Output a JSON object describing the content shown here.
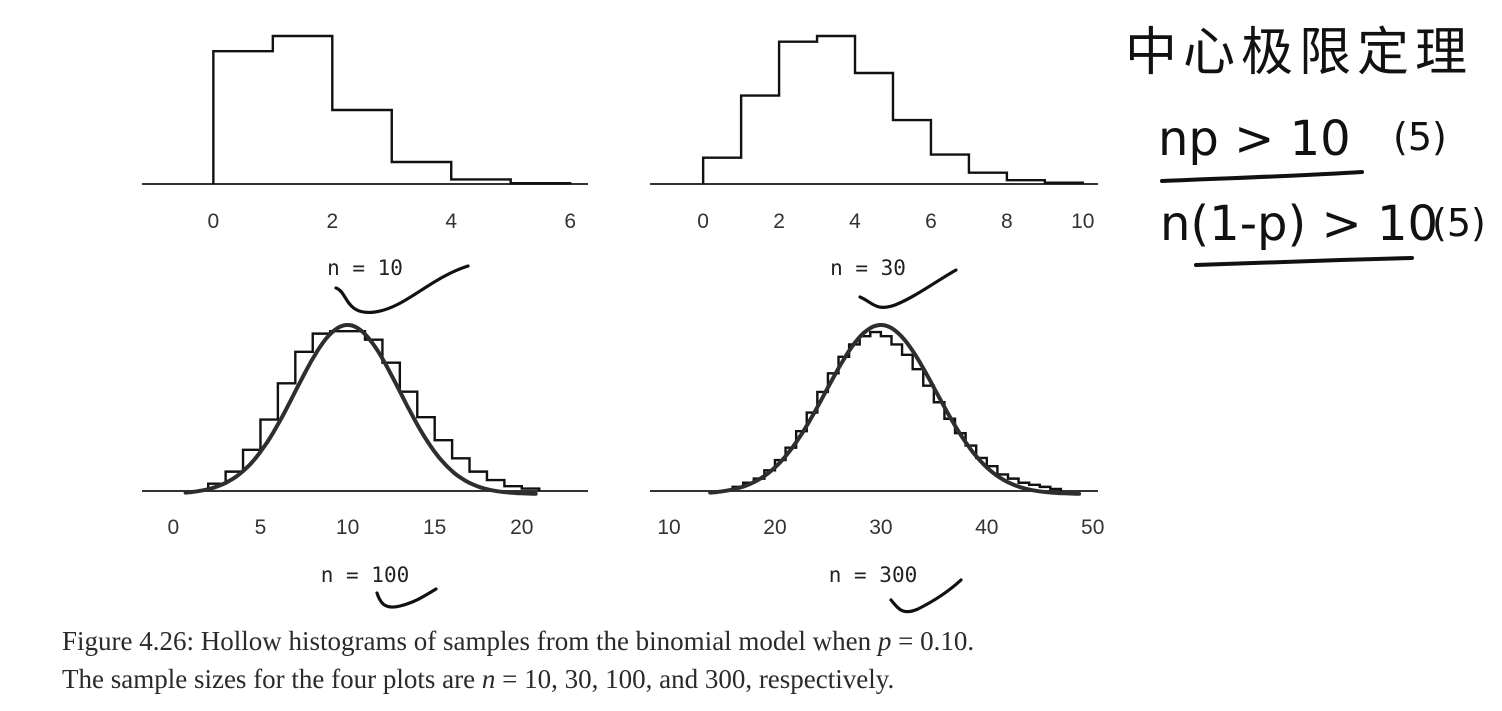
{
  "chart_data": [
    {
      "type": "histogram",
      "label": "n = 10",
      "x_ticks": [
        0,
        2,
        4,
        6
      ],
      "xlim": [
        -1.2,
        6.3
      ],
      "bins": [
        {
          "x0": 0,
          "x1": 1,
          "y": 0.35
        },
        {
          "x0": 1,
          "x1": 2,
          "y": 0.39
        },
        {
          "x0": 2,
          "x1": 3,
          "y": 0.195
        },
        {
          "x0": 3,
          "x1": 4,
          "y": 0.058
        },
        {
          "x0": 4,
          "x1": 5,
          "y": 0.012
        },
        {
          "x0": 5,
          "x1": 6,
          "y": 0.002
        }
      ],
      "ymax": 0.39
    },
    {
      "type": "histogram",
      "label": "n = 30",
      "x_ticks": [
        0,
        2,
        4,
        6,
        8,
        10
      ],
      "xlim": [
        -1.4,
        10.4
      ],
      "bins": [
        {
          "x0": 0,
          "x1": 1,
          "y": 0.042
        },
        {
          "x0": 1,
          "x1": 2,
          "y": 0.141
        },
        {
          "x0": 2,
          "x1": 3,
          "y": 0.227
        },
        {
          "x0": 3,
          "x1": 4,
          "y": 0.236
        },
        {
          "x0": 4,
          "x1": 5,
          "y": 0.177
        },
        {
          "x0": 5,
          "x1": 6,
          "y": 0.102
        },
        {
          "x0": 6,
          "x1": 7,
          "y": 0.047
        },
        {
          "x0": 7,
          "x1": 8,
          "y": 0.018
        },
        {
          "x0": 8,
          "x1": 9,
          "y": 0.006
        },
        {
          "x0": 9,
          "x1": 10,
          "y": 0.002
        }
      ],
      "ymax": 0.236
    },
    {
      "type": "histogram",
      "label": "n = 100",
      "x_ticks": [
        0,
        5,
        10,
        15,
        20
      ],
      "xlim": [
        -1.8,
        23.8
      ],
      "bins": [
        {
          "x0": 2,
          "x1": 3,
          "y": 0.006
        },
        {
          "x0": 3,
          "x1": 4,
          "y": 0.016
        },
        {
          "x0": 4,
          "x1": 5,
          "y": 0.034
        },
        {
          "x0": 5,
          "x1": 6,
          "y": 0.059
        },
        {
          "x0": 6,
          "x1": 7,
          "y": 0.089
        },
        {
          "x0": 7,
          "x1": 8,
          "y": 0.115
        },
        {
          "x0": 8,
          "x1": 9,
          "y": 0.13
        },
        {
          "x0": 9,
          "x1": 10,
          "y": 0.132
        },
        {
          "x0": 10,
          "x1": 11,
          "y": 0.132
        },
        {
          "x0": 11,
          "x1": 12,
          "y": 0.125
        },
        {
          "x0": 12,
          "x1": 13,
          "y": 0.106
        },
        {
          "x0": 13,
          "x1": 14,
          "y": 0.082
        },
        {
          "x0": 14,
          "x1": 15,
          "y": 0.061
        },
        {
          "x0": 15,
          "x1": 16,
          "y": 0.042
        },
        {
          "x0": 16,
          "x1": 17,
          "y": 0.027
        },
        {
          "x0": 17,
          "x1": 18,
          "y": 0.016
        },
        {
          "x0": 18,
          "x1": 19,
          "y": 0.009
        },
        {
          "x0": 19,
          "x1": 20,
          "y": 0.004
        },
        {
          "x0": 20,
          "x1": 21,
          "y": 0.002
        }
      ],
      "normal_curve": {
        "mean": 10,
        "sd": 3
      },
      "ymax": 0.133
    },
    {
      "type": "histogram",
      "label": "n = 300",
      "x_ticks": [
        10,
        20,
        30,
        40,
        50
      ],
      "xlim": [
        8.2,
        50.5
      ],
      "bins": [
        {
          "x0": 16,
          "x1": 17,
          "y": 0.002
        },
        {
          "x0": 17,
          "x1": 18,
          "y": 0.004
        },
        {
          "x0": 18,
          "x1": 19,
          "y": 0.006
        },
        {
          "x0": 19,
          "x1": 20,
          "y": 0.01
        },
        {
          "x0": 20,
          "x1": 21,
          "y": 0.015
        },
        {
          "x0": 21,
          "x1": 22,
          "y": 0.021
        },
        {
          "x0": 22,
          "x1": 23,
          "y": 0.029
        },
        {
          "x0": 23,
          "x1": 24,
          "y": 0.038
        },
        {
          "x0": 24,
          "x1": 25,
          "y": 0.048
        },
        {
          "x0": 25,
          "x1": 26,
          "y": 0.057
        },
        {
          "x0": 26,
          "x1": 27,
          "y": 0.065
        },
        {
          "x0": 27,
          "x1": 28,
          "y": 0.071
        },
        {
          "x0": 28,
          "x1": 29,
          "y": 0.075
        },
        {
          "x0": 29,
          "x1": 30,
          "y": 0.077
        },
        {
          "x0": 30,
          "x1": 31,
          "y": 0.075
        },
        {
          "x0": 31,
          "x1": 32,
          "y": 0.071
        },
        {
          "x0": 32,
          "x1": 33,
          "y": 0.066
        },
        {
          "x0": 33,
          "x1": 34,
          "y": 0.059
        },
        {
          "x0": 34,
          "x1": 35,
          "y": 0.051
        },
        {
          "x0": 35,
          "x1": 36,
          "y": 0.043
        },
        {
          "x0": 36,
          "x1": 37,
          "y": 0.035
        },
        {
          "x0": 37,
          "x1": 38,
          "y": 0.028
        },
        {
          "x0": 38,
          "x1": 39,
          "y": 0.022
        },
        {
          "x0": 39,
          "x1": 40,
          "y": 0.016
        },
        {
          "x0": 40,
          "x1": 41,
          "y": 0.012
        },
        {
          "x0": 41,
          "x1": 42,
          "y": 0.008
        },
        {
          "x0": 42,
          "x1": 43,
          "y": 0.006
        },
        {
          "x0": 43,
          "x1": 44,
          "y": 0.004
        },
        {
          "x0": 44,
          "x1": 45,
          "y": 0.003
        },
        {
          "x0": 45,
          "x1": 46,
          "y": 0.002
        },
        {
          "x0": 46,
          "x1": 47,
          "y": 0.001
        }
      ],
      "normal_curve": {
        "mean": 30,
        "sd": 5.2
      },
      "ymax": 0.078
    }
  ],
  "caption": {
    "line1_prefix": "Figure 4.26: Hollow histograms of samples from the binomial model when ",
    "line1_var": "p",
    "line1_suffix": " = 0.10.",
    "line2_prefix": "The sample sizes for the four plots are ",
    "line2_var": "n",
    "line2_suffix": " = 10, 30, 100, and 300, respectively."
  },
  "handwriting": {
    "title": "中心极限定理",
    "rule1": "np > 10",
    "rule1_note": "(5)",
    "rule2": "n(1-p) > 10",
    "rule2_note": "(5)"
  },
  "colors": {
    "axis": "#333333",
    "histogram": "#111111",
    "curve": "#2e2e2e",
    "ink": "#111111"
  }
}
